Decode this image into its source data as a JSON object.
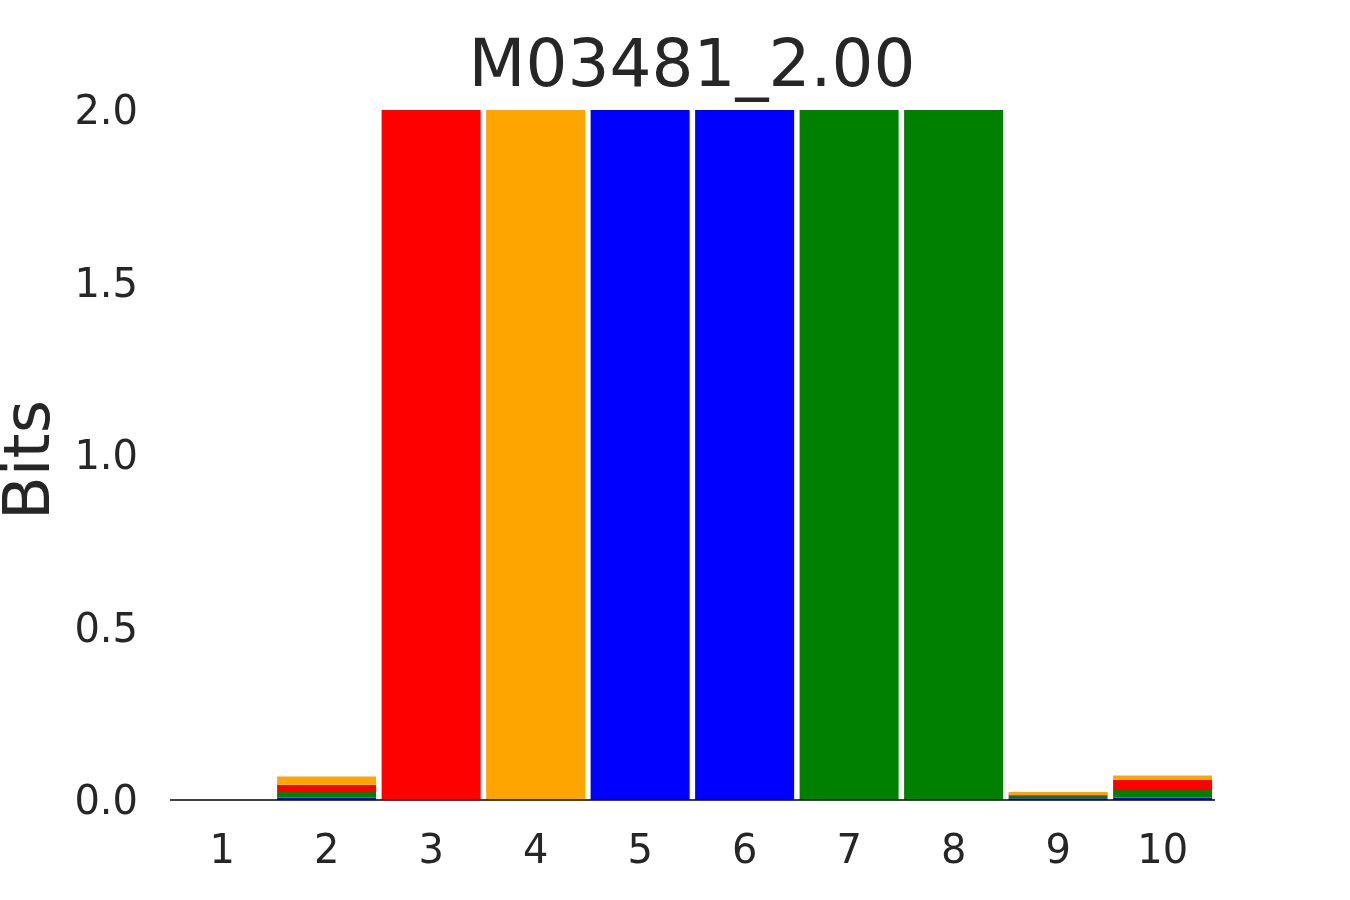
{
  "chart_data": {
    "type": "bar",
    "title": "M03481_2.00",
    "ylabel": "Bits",
    "stacked": true,
    "categories": [
      "1",
      "2",
      "3",
      "4",
      "5",
      "6",
      "7",
      "8",
      "9",
      "10"
    ],
    "series": [
      {
        "color": "#0000ff",
        "values": [
          0,
          0.007,
          0,
          0,
          2.0,
          2.0,
          0,
          0,
          0.005,
          0.007
        ]
      },
      {
        "color": "#008000",
        "values": [
          0,
          0.019,
          0,
          0,
          0,
          0,
          2.0,
          2.0,
          0.007,
          0.025
        ]
      },
      {
        "color": "#ff0000",
        "values": [
          0,
          0.018,
          2.0,
          0,
          0,
          0,
          0,
          0,
          0.004,
          0.027
        ]
      },
      {
        "color": "#ffa500",
        "values": [
          0,
          0.024,
          0,
          2.0,
          0,
          0,
          0,
          0,
          0.007,
          0.012
        ]
      }
    ],
    "ylim": [
      0,
      2
    ],
    "yticks": [
      {
        "value": 0,
        "label": "0.0"
      },
      0.5,
      {
        "value": 1,
        "label": "1.0"
      },
      1.5,
      {
        "value": 2,
        "label": "2.0"
      }
    ]
  }
}
